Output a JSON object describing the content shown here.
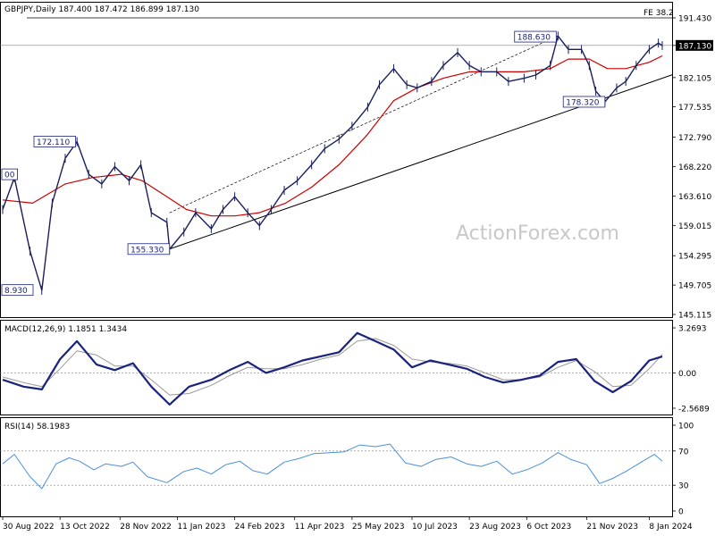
{
  "chart_data": [
    {
      "type": "line",
      "title": "GBPJPY,Daily",
      "ohlc": {
        "open": "187.400",
        "high": "187.472",
        "low": "186.899",
        "close": "187.130"
      },
      "current_price": "187.130",
      "y_ticks": [
        "191.430",
        "187.130",
        "182.105",
        "177.535",
        "172.790",
        "168.220",
        "163.610",
        "159.015",
        "154.295",
        "149.705",
        "145.115"
      ],
      "ylim": [
        145.115,
        191.43
      ],
      "x_ticks": [
        "30 Aug 2022",
        "13 Oct 2022",
        "28 Nov 2022",
        "11 Jan 2023",
        "24 Feb 2023",
        "11 Apr 2023",
        "25 May 2023",
        "10 Jul 2023",
        "23 Aug 2023",
        "6 Oct 2023",
        "21 Nov 2023",
        "8 Jan 2024"
      ],
      "annotations": [
        {
          "text": "172.110",
          "x": "17 Sep 2022",
          "y": 172.11
        },
        {
          "text": "155.330",
          "x": "5 Jan 2023",
          "y": 155.33
        },
        {
          "text": "188.630",
          "x": "30 Oct 2023",
          "y": 188.63
        },
        {
          "text": "178.320",
          "x": "5 Dec 2023",
          "y": 178.32
        },
        {
          "text": "8.930",
          "x": "30 Aug 2022",
          "y": 148.93
        },
        {
          "text": "00",
          "x": "30 Aug 2022",
          "y": 167.0
        },
        {
          "text": "FE 38.2",
          "x": "8 Jan 2024",
          "y": 191.43
        }
      ],
      "series": [
        {
          "values": [
            [
              "30 Aug 2022",
              161.5
            ],
            [
              "8 Sep 2022",
              166.5
            ],
            [
              "20 Sep 2022",
              155.0
            ],
            [
              "29 Sep 2022",
              148.9
            ],
            [
              "7 Oct 2022",
              162.5
            ],
            [
              "17 Oct 2022",
              169.5
            ],
            [
              "26 Oct 2022",
              172.1
            ],
            [
              "4 Nov 2022",
              167.0
            ],
            [
              "14 Nov 2022",
              165.5
            ],
            [
              "24 Nov 2022",
              168.2
            ],
            [
              "5 Dec 2022",
              166.0
            ],
            [
              "14 Dec 2022",
              168.5
            ],
            [
              "22 Dec 2022",
              161.0
            ],
            [
              "3 Jan 2023",
              159.5
            ],
            [
              "5 Jan 2023",
              155.3
            ],
            [
              "16 Jan 2023",
              158.0
            ],
            [
              "25 Jan 2023",
              161.0
            ],
            [
              "6 Feb 2023",
              158.5
            ],
            [
              "15 Feb 2023",
              161.5
            ],
            [
              "24 Feb 2023",
              163.5
            ],
            [
              "6 Mar 2023",
              161.0
            ],
            [
              "15 Mar 2023",
              159.0
            ],
            [
              "24 Mar 2023",
              161.5
            ],
            [
              "3 Apr 2023",
              164.5
            ],
            [
              "13 Apr 2023",
              166.0
            ],
            [
              "24 Apr 2023",
              168.5
            ],
            [
              "4 May 2023",
              171.0
            ],
            [
              "15 May 2023",
              172.5
            ],
            [
              "25 May 2023",
              174.5
            ],
            [
              "6 Jun 2023",
              177.5
            ],
            [
              "15 Jun 2023",
              181.0
            ],
            [
              "26 Jun 2023",
              183.5
            ],
            [
              "6 Jul 2023",
              181.0
            ],
            [
              "14 Jul 2023",
              180.5
            ],
            [
              "25 Jul 2023",
              181.5
            ],
            [
              "3 Aug 2023",
              184.0
            ],
            [
              "14 Aug 2023",
              186.0
            ],
            [
              "23 Aug 2023",
              184.0
            ],
            [
              "1 Sep 2023",
              183.0
            ],
            [
              "13 Sep 2023",
              183.0
            ],
            [
              "22 Sep 2023",
              181.5
            ],
            [
              "4 Oct 2023",
              182.0
            ],
            [
              "13 Oct 2023",
              182.5
            ],
            [
              "24 Oct 2023",
              184.0
            ],
            [
              "30 Oct 2023",
              188.6
            ],
            [
              "7 Nov 2023",
              186.5
            ],
            [
              "17 Nov 2023",
              186.5
            ],
            [
              "23 Nov 2023",
              184.0
            ],
            [
              "28 Nov 2023",
              180.0
            ],
            [
              "5 Dec 2023",
              178.3
            ],
            [
              "14 Dec 2023",
              180.5
            ],
            [
              "21 Dec 2023",
              181.5
            ],
            [
              "29 Dec 2023",
              184.0
            ],
            [
              "8 Jan 2024",
              186.5
            ],
            [
              "15 Jan 2024",
              187.5
            ],
            [
              "18 Jan 2024",
              187.1
            ]
          ]
        },
        {
          "values": [
            [
              "30 Aug 2022",
              163.0
            ],
            [
              "22 Sep 2022",
              162.5
            ],
            [
              "17 Oct 2022",
              165.5
            ],
            [
              "7 Nov 2022",
              166.5
            ],
            [
              "29 Nov 2022",
              167.0
            ],
            [
              "15 Dec 2022",
              166.0
            ],
            [
              "3 Jan 2023",
              163.5
            ],
            [
              "18 Jan 2023",
              161.5
            ],
            [
              "6 Feb 2023",
              160.5
            ],
            [
              "24 Feb 2023",
              160.5
            ],
            [
              "15 Mar 2023",
              161.0
            ],
            [
              "4 Apr 2023",
              162.5
            ],
            [
              "24 Apr 2023",
              165.0
            ],
            [
              "15 May 2023",
              168.5
            ],
            [
              "5 Jun 2023",
              173.0
            ],
            [
              "26 Jun 2023",
              178.5
            ],
            [
              "14 Jul 2023",
              180.5
            ],
            [
              "3 Aug 2023",
              182.0
            ],
            [
              "23 Aug 2023",
              183.0
            ],
            [
              "13 Sep 2023",
              183.0
            ],
            [
              "4 Oct 2023",
              183.0
            ],
            [
              "24 Oct 2023",
              183.5
            ],
            [
              "7 Nov 2023",
              185.0
            ],
            [
              "23 Nov 2023",
              185.0
            ],
            [
              "7 Dec 2023",
              183.5
            ],
            [
              "21 Dec 2023",
              183.5
            ],
            [
              "8 Jan 2024",
              184.5
            ],
            [
              "18 Jan 2024",
              185.5
            ]
          ]
        }
      ],
      "trendline": {
        "from": [
          "5 Jan 2023",
          155.33
        ],
        "to": [
          "18 Jan 2024",
          182.0
        ]
      },
      "channel_line": {
        "from": [
          "5 Jan 2023",
          161.0
        ],
        "to": [
          "30 Oct 2023",
          188.63
        ]
      },
      "fe_level": 191.43,
      "watermark": "ActionForex.com"
    },
    {
      "type": "line",
      "title": "MACD(12,26,9) 1.1851 1.3434",
      "y_ticks": [
        "3.2693",
        "0.00",
        "-2.5689"
      ],
      "ylim": [
        -2.5689,
        3.2693
      ],
      "series": [
        {
          "values": [
            [
              "30 Aug 2022",
              -0.5
            ],
            [
              "15 Sep 2022",
              -1.0
            ],
            [
              "29 Sep 2022",
              -1.2
            ],
            [
              "13 Oct 2022",
              1.0
            ],
            [
              "26 Oct 2022",
              2.3
            ],
            [
              "10 Nov 2022",
              0.6
            ],
            [
              "24 Nov 2022",
              0.2
            ],
            [
              "8 Dec 2022",
              0.7
            ],
            [
              "22 Dec 2022",
              -1.0
            ],
            [
              "5 Jan 2023",
              -2.3
            ],
            [
              "20 Jan 2023",
              -1.0
            ],
            [
              "6 Feb 2023",
              -0.5
            ],
            [
              "20 Feb 2023",
              0.2
            ],
            [
              "6 Mar 2023",
              0.8
            ],
            [
              "20 Mar 2023",
              0.0
            ],
            [
              "3 Apr 2023",
              0.4
            ],
            [
              "17 Apr 2023",
              0.9
            ],
            [
              "1 May 2023",
              1.2
            ],
            [
              "15 May 2023",
              1.5
            ],
            [
              "29 May 2023",
              2.9
            ],
            [
              "12 Jun 2023",
              2.3
            ],
            [
              "26 Jun 2023",
              1.7
            ],
            [
              "10 Jul 2023",
              0.4
            ],
            [
              "24 Jul 2023",
              0.9
            ],
            [
              "7 Aug 2023",
              0.6
            ],
            [
              "21 Aug 2023",
              0.3
            ],
            [
              "4 Sep 2023",
              -0.3
            ],
            [
              "18 Sep 2023",
              -0.7
            ],
            [
              "2 Oct 2023",
              -0.5
            ],
            [
              "16 Oct 2023",
              -0.2
            ],
            [
              "30 Oct 2023",
              0.8
            ],
            [
              "13 Nov 2023",
              1.0
            ],
            [
              "27 Nov 2023",
              -0.6
            ],
            [
              "11 Dec 2023",
              -1.4
            ],
            [
              "25 Dec 2023",
              -0.6
            ],
            [
              "8 Jan 2024",
              0.9
            ],
            [
              "18 Jan 2024",
              1.19
            ]
          ]
        },
        {
          "values": [
            [
              "30 Aug 2022",
              -0.3
            ],
            [
              "15 Sep 2022",
              -0.7
            ],
            [
              "29 Sep 2022",
              -1.0
            ],
            [
              "13 Oct 2022",
              0.3
            ],
            [
              "26 Oct 2022",
              1.6
            ],
            [
              "10 Nov 2022",
              1.3
            ],
            [
              "24 Nov 2022",
              0.5
            ],
            [
              "8 Dec 2022",
              0.5
            ],
            [
              "22 Dec 2022",
              -0.5
            ],
            [
              "5 Jan 2023",
              -1.6
            ],
            [
              "20 Jan 2023",
              -1.5
            ],
            [
              "6 Feb 2023",
              -0.9
            ],
            [
              "20 Feb 2023",
              -0.2
            ],
            [
              "6 Mar 2023",
              0.4
            ],
            [
              "20 Mar 2023",
              0.3
            ],
            [
              "3 Apr 2023",
              0.3
            ],
            [
              "17 Apr 2023",
              0.6
            ],
            [
              "1 May 2023",
              1.0
            ],
            [
              "15 May 2023",
              1.3
            ],
            [
              "29 May 2023",
              2.3
            ],
            [
              "12 Jun 2023",
              2.5
            ],
            [
              "26 Jun 2023",
              2.0
            ],
            [
              "10 Jul 2023",
              1.0
            ],
            [
              "24 Jul 2023",
              0.8
            ],
            [
              "7 Aug 2023",
              0.7
            ],
            [
              "21 Aug 2023",
              0.5
            ],
            [
              "4 Sep 2023",
              0.0
            ],
            [
              "18 Sep 2023",
              -0.5
            ],
            [
              "2 Oct 2023",
              -0.5
            ],
            [
              "16 Oct 2023",
              -0.3
            ],
            [
              "30 Oct 2023",
              0.4
            ],
            [
              "13 Nov 2023",
              0.9
            ],
            [
              "27 Nov 2023",
              0.1
            ],
            [
              "11 Dec 2023",
              -1.0
            ],
            [
              "25 Dec 2023",
              -0.9
            ],
            [
              "8 Jan 2024",
              0.3
            ],
            [
              "18 Jan 2024",
              1.34
            ]
          ]
        }
      ]
    },
    {
      "type": "line",
      "title": "RSI(14) 58.1983",
      "y_ticks": [
        "100",
        "70",
        "30",
        "0"
      ],
      "ylim": [
        0,
        100
      ],
      "series": [
        {
          "values": [
            [
              "30 Aug 2022",
              55
            ],
            [
              "8 Sep 2022",
              66
            ],
            [
              "20 Sep 2022",
              40
            ],
            [
              "29 Sep 2022",
              26
            ],
            [
              "10 Oct 2022",
              55
            ],
            [
              "20 Oct 2022",
              62
            ],
            [
              "28 Oct 2022",
              58
            ],
            [
              "8 Nov 2022",
              48
            ],
            [
              "17 Nov 2022",
              55
            ],
            [
              "29 Nov 2022",
              52
            ],
            [
              "8 Dec 2022",
              57
            ],
            [
              "19 Dec 2022",
              40
            ],
            [
              "3 Jan 2023",
              33
            ],
            [
              "16 Jan 2023",
              46
            ],
            [
              "26 Jan 2023",
              50
            ],
            [
              "6 Feb 2023",
              43
            ],
            [
              "17 Feb 2023",
              54
            ],
            [
              "28 Feb 2023",
              58
            ],
            [
              "10 Mar 2023",
              47
            ],
            [
              "21 Mar 2023",
              43
            ],
            [
              "3 Apr 2023",
              57
            ],
            [
              "14 Apr 2023",
              61
            ],
            [
              "26 Apr 2023",
              67
            ],
            [
              "8 May 2023",
              68
            ],
            [
              "19 May 2023",
              69
            ],
            [
              "31 May 2023",
              77
            ],
            [
              "12 Jun 2023",
              75
            ],
            [
              "23 Jun 2023",
              78
            ],
            [
              "5 Jul 2023",
              56
            ],
            [
              "17 Jul 2023",
              52
            ],
            [
              "28 Jul 2023",
              60
            ],
            [
              "9 Aug 2023",
              63
            ],
            [
              "21 Aug 2023",
              55
            ],
            [
              "1 Sep 2023",
              52
            ],
            [
              "13 Sep 2023",
              58
            ],
            [
              "25 Sep 2023",
              43
            ],
            [
              "6 Oct 2023",
              48
            ],
            [
              "18 Oct 2023",
              56
            ],
            [
              "30 Oct 2023",
              68
            ],
            [
              "9 Nov 2023",
              60
            ],
            [
              "21 Nov 2023",
              54
            ],
            [
              "1 Dec 2023",
              32
            ],
            [
              "11 Dec 2023",
              38
            ],
            [
              "21 Dec 2023",
              46
            ],
            [
              "3 Jan 2024",
              58
            ],
            [
              "12 Jan 2024",
              66
            ],
            [
              "18 Jan 2024",
              58
            ]
          ]
        }
      ],
      "guides": [
        70,
        30
      ]
    }
  ],
  "colors": {
    "price": "#1a1f5c",
    "ma": "#cc0000",
    "trendline": "#000000",
    "macd": "#1a237e",
    "signal": "#999999",
    "rsi": "#4a90d9",
    "grid": "#808080",
    "label_border": "#1a237e"
  }
}
